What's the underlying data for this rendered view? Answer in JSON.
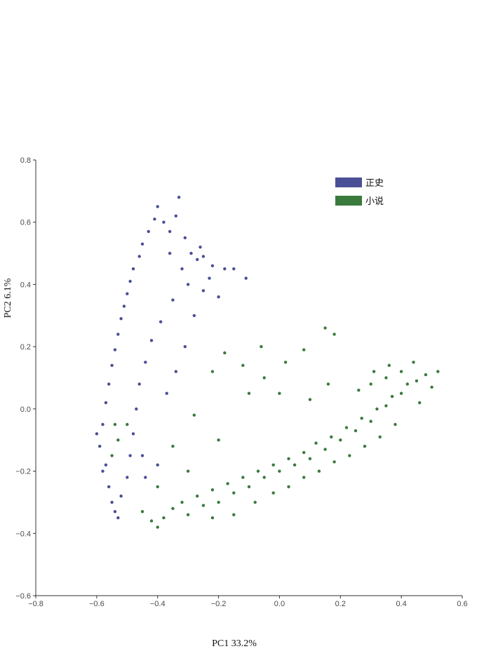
{
  "chart_data": {
    "type": "scatter",
    "xlabel": "PC1 33.2%",
    "ylabel": "PC2 6.1%",
    "xlim": [
      -0.8,
      0.6
    ],
    "ylim": [
      -0.6,
      0.8
    ],
    "x_ticks": [
      -0.8,
      -0.6,
      -0.4,
      -0.2,
      0.0,
      0.2,
      0.4,
      0.6
    ],
    "y_ticks": [
      -0.6,
      -0.4,
      -0.2,
      0.0,
      0.2,
      0.4,
      0.6,
      0.8
    ],
    "x_tick_labels": [
      "−0.8",
      "−0.6",
      "−0.4",
      "−0.2",
      "0.0",
      "0.2",
      "0.4",
      "0.6"
    ],
    "y_tick_labels": [
      "−0.6",
      "−0.4",
      "−0.2",
      "0.0",
      "0.2",
      "0.4",
      "0.6",
      "0.8"
    ],
    "legend_position": "top-right",
    "grid": false,
    "series": [
      {
        "name": "正史",
        "color": "#4a4f96",
        "points": [
          [
            -0.59,
            -0.12
          ],
          [
            -0.57,
            -0.18
          ],
          [
            -0.56,
            -0.25
          ],
          [
            -0.55,
            -0.3
          ],
          [
            -0.54,
            -0.33
          ],
          [
            -0.58,
            -0.05
          ],
          [
            -0.57,
            0.02
          ],
          [
            -0.56,
            0.08
          ],
          [
            -0.55,
            0.14
          ],
          [
            -0.54,
            0.19
          ],
          [
            -0.53,
            0.24
          ],
          [
            -0.52,
            0.29
          ],
          [
            -0.51,
            0.33
          ],
          [
            -0.5,
            0.37
          ],
          [
            -0.49,
            0.41
          ],
          [
            -0.48,
            0.45
          ],
          [
            -0.46,
            0.49
          ],
          [
            -0.45,
            0.53
          ],
          [
            -0.43,
            0.57
          ],
          [
            -0.41,
            0.61
          ],
          [
            -0.4,
            0.65
          ],
          [
            -0.38,
            0.6
          ],
          [
            -0.36,
            0.57
          ],
          [
            -0.34,
            0.62
          ],
          [
            -0.33,
            0.68
          ],
          [
            -0.31,
            0.55
          ],
          [
            -0.29,
            0.5
          ],
          [
            -0.27,
            0.48
          ],
          [
            -0.25,
            0.49
          ],
          [
            -0.22,
            0.46
          ],
          [
            -0.18,
            0.45
          ],
          [
            -0.15,
            0.45
          ],
          [
            -0.11,
            0.42
          ],
          [
            -0.3,
            0.4
          ],
          [
            -0.35,
            0.35
          ],
          [
            -0.39,
            0.28
          ],
          [
            -0.42,
            0.22
          ],
          [
            -0.44,
            0.15
          ],
          [
            -0.46,
            0.08
          ],
          [
            -0.47,
            0.0
          ],
          [
            -0.48,
            -0.08
          ],
          [
            -0.49,
            -0.15
          ],
          [
            -0.5,
            -0.22
          ],
          [
            -0.52,
            -0.28
          ],
          [
            -0.53,
            -0.35
          ],
          [
            -0.6,
            -0.08
          ],
          [
            -0.58,
            -0.2
          ],
          [
            -0.45,
            -0.15
          ],
          [
            -0.44,
            -0.22
          ],
          [
            -0.4,
            -0.18
          ],
          [
            -0.37,
            0.05
          ],
          [
            -0.34,
            0.12
          ],
          [
            -0.31,
            0.2
          ],
          [
            -0.28,
            0.3
          ],
          [
            -0.25,
            0.38
          ],
          [
            -0.2,
            0.36
          ],
          [
            -0.23,
            0.42
          ],
          [
            -0.26,
            0.52
          ],
          [
            -0.32,
            0.45
          ],
          [
            -0.36,
            0.5
          ]
        ]
      },
      {
        "name": "小说",
        "color": "#3a7a3c",
        "points": [
          [
            -0.45,
            -0.33
          ],
          [
            -0.42,
            -0.36
          ],
          [
            -0.4,
            -0.38
          ],
          [
            -0.38,
            -0.35
          ],
          [
            -0.35,
            -0.32
          ],
          [
            -0.32,
            -0.3
          ],
          [
            -0.3,
            -0.34
          ],
          [
            -0.27,
            -0.28
          ],
          [
            -0.25,
            -0.31
          ],
          [
            -0.22,
            -0.26
          ],
          [
            -0.2,
            -0.3
          ],
          [
            -0.17,
            -0.24
          ],
          [
            -0.15,
            -0.27
          ],
          [
            -0.12,
            -0.22
          ],
          [
            -0.1,
            -0.25
          ],
          [
            -0.07,
            -0.2
          ],
          [
            -0.05,
            -0.22
          ],
          [
            -0.02,
            -0.18
          ],
          [
            0.0,
            -0.2
          ],
          [
            0.03,
            -0.16
          ],
          [
            0.05,
            -0.18
          ],
          [
            0.08,
            -0.14
          ],
          [
            0.1,
            -0.16
          ],
          [
            0.12,
            -0.11
          ],
          [
            0.15,
            -0.13
          ],
          [
            0.17,
            -0.09
          ],
          [
            0.2,
            -0.1
          ],
          [
            0.22,
            -0.06
          ],
          [
            0.25,
            -0.07
          ],
          [
            0.27,
            -0.03
          ],
          [
            0.3,
            -0.04
          ],
          [
            0.32,
            0.0
          ],
          [
            0.35,
            0.01
          ],
          [
            0.37,
            0.04
          ],
          [
            0.4,
            0.05
          ],
          [
            0.42,
            0.08
          ],
          [
            0.45,
            0.09
          ],
          [
            0.48,
            0.11
          ],
          [
            0.5,
            0.07
          ],
          [
            0.52,
            0.12
          ],
          [
            0.38,
            -0.05
          ],
          [
            0.33,
            -0.09
          ],
          [
            0.28,
            -0.12
          ],
          [
            0.23,
            -0.15
          ],
          [
            0.18,
            -0.17
          ],
          [
            0.13,
            -0.2
          ],
          [
            0.08,
            -0.22
          ],
          [
            0.03,
            -0.25
          ],
          [
            -0.02,
            -0.27
          ],
          [
            -0.08,
            -0.3
          ],
          [
            -0.15,
            -0.34
          ],
          [
            -0.22,
            -0.35
          ],
          [
            0.4,
            0.12
          ],
          [
            0.35,
            0.1
          ],
          [
            0.3,
            0.08
          ],
          [
            0.26,
            0.06
          ],
          [
            0.44,
            0.15
          ],
          [
            0.46,
            0.02
          ],
          [
            0.36,
            0.14
          ],
          [
            0.31,
            0.12
          ],
          [
            -0.1,
            0.05
          ],
          [
            -0.05,
            0.1
          ],
          [
            0.02,
            0.15
          ],
          [
            0.08,
            0.19
          ],
          [
            0.15,
            0.26
          ],
          [
            -0.22,
            0.12
          ],
          [
            -0.12,
            0.14
          ],
          [
            0.0,
            0.05
          ],
          [
            0.1,
            0.03
          ],
          [
            0.16,
            0.08
          ],
          [
            -0.28,
            -0.02
          ],
          [
            -0.2,
            -0.1
          ],
          [
            -0.35,
            -0.12
          ],
          [
            -0.3,
            -0.2
          ],
          [
            -0.4,
            -0.25
          ],
          [
            0.18,
            0.24
          ],
          [
            -0.06,
            0.2
          ],
          [
            -0.18,
            0.18
          ],
          [
            -0.54,
            -0.05
          ],
          [
            -0.55,
            -0.15
          ],
          [
            -0.53,
            -0.1
          ],
          [
            -0.5,
            -0.05
          ]
        ]
      }
    ]
  }
}
